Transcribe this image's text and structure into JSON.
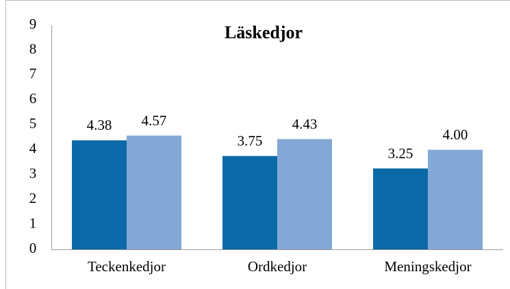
{
  "chart_data": {
    "type": "bar",
    "title": "Läskedjor",
    "categories": [
      "Teckenkedjor",
      "Ordkedjor",
      "Meningskedjor"
    ],
    "series": [
      {
        "color": "#0b69a8",
        "values": [
          4.38,
          3.75,
          3.25
        ],
        "value_labels": [
          "4.38",
          "3.75",
          "3.25"
        ]
      },
      {
        "color": "#84a8d5",
        "values": [
          4.57,
          4.43,
          4.0
        ],
        "value_labels": [
          "4.57",
          "4.43",
          "4.00"
        ]
      }
    ],
    "ylim": [
      0,
      9
    ],
    "yticks": [
      0,
      1,
      2,
      3,
      4,
      5,
      6,
      7,
      8,
      9
    ],
    "grid": false
  }
}
